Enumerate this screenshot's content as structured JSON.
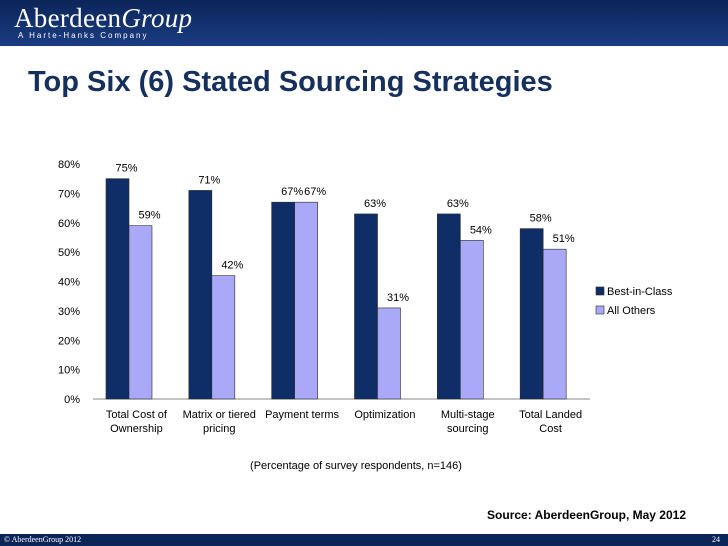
{
  "header": {
    "brand_main": "Aberdeen",
    "brand_group": "Group",
    "tagline": "A Harte-Hanks Company"
  },
  "slide": {
    "title": "Top Six (6) Stated Sourcing Strategies",
    "caption": "(Percentage of survey respondents, n=146)",
    "source": "Source: AberdeenGroup, May 2012"
  },
  "footer": {
    "copyright": "© AberdeenGroup 2012",
    "page_number": "24"
  },
  "colors": {
    "best_in_class": "#0f2e68",
    "all_others": "#a9a9f7",
    "bar_outline": "#2b2b2b"
  },
  "chart_data": {
    "type": "bar",
    "categories": [
      [
        "Total Cost of",
        "Ownership"
      ],
      [
        "Matrix or tiered",
        "pricing"
      ],
      [
        "Payment terms"
      ],
      [
        "Optimization"
      ],
      [
        "Multi-stage",
        "sourcing"
      ],
      [
        "Total Landed",
        "Cost"
      ]
    ],
    "series": [
      {
        "name": "Best-in-Class",
        "values": [
          75,
          71,
          67,
          63,
          63,
          58
        ],
        "labels": [
          "75%",
          "71%",
          "67%",
          "63%",
          "63%",
          "58%"
        ]
      },
      {
        "name": "All Others",
        "values": [
          59,
          42,
          67,
          31,
          54,
          51
        ],
        "labels": [
          "59%",
          "42%",
          "67%",
          "31%",
          "54%",
          "51%"
        ]
      }
    ],
    "ylim": [
      0,
      80
    ],
    "yticks": [
      0,
      10,
      20,
      30,
      40,
      50,
      60,
      70,
      80
    ],
    "ytick_labels": [
      "0%",
      "10%",
      "20%",
      "30%",
      "40%",
      "50%",
      "60%",
      "70%",
      "80%"
    ],
    "legend_position": "right",
    "grid": false,
    "xlabel": "",
    "ylabel": ""
  }
}
